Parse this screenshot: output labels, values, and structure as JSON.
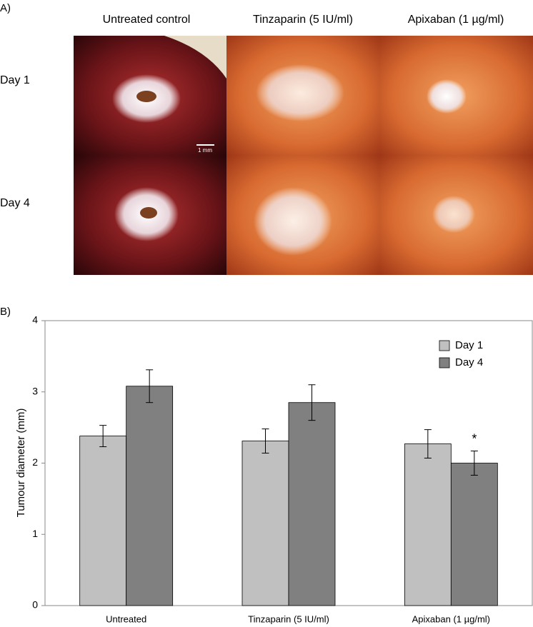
{
  "panel_a": {
    "label": "A)",
    "columns": [
      "Untreated control",
      "Tinzaparin (5 IU/ml)",
      "Apixaban (1 µg/ml)"
    ],
    "rows": [
      "Day 1",
      "Day 4"
    ],
    "scale_bar": "1 mm"
  },
  "panel_b_label": "B)",
  "chart_data": {
    "type": "bar",
    "ylabel": "Tumour diameter (mm)",
    "categories": [
      "Untreated",
      "Tinzaparin (5 IU/ml)",
      "Apixaban (1 µg/ml)"
    ],
    "series": [
      {
        "name": "Day 1",
        "color": "#c0c0c0",
        "values": [
          2.38,
          2.31,
          2.27
        ],
        "errors": [
          0.15,
          0.17,
          0.2
        ]
      },
      {
        "name": "Day 4",
        "color": "#808080",
        "values": [
          3.08,
          2.85,
          2.0
        ],
        "errors": [
          0.23,
          0.25,
          0.17
        ]
      }
    ],
    "annotation": "*",
    "ylim": [
      0,
      4
    ],
    "yticks": [
      0,
      1,
      2,
      3,
      4
    ],
    "grid": false,
    "legend": "top-right"
  }
}
